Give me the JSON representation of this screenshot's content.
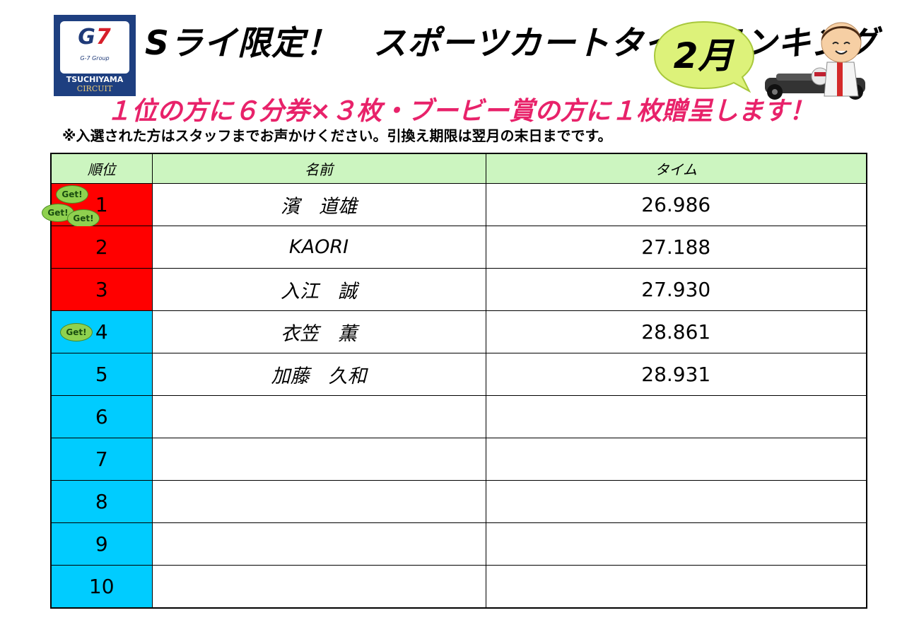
{
  "logo": {
    "mark_g": "G",
    "mark_7": "7",
    "group": "G-7 Group",
    "line1": "TSUCHIYAMA",
    "line2": "CIRCUIT"
  },
  "header": {
    "title": "Sライ限定！　スポーツカートタイムランキング",
    "month": "2月",
    "subtitle": "１位の方に６分券×３枚・ブービー賞の方に１枚贈呈します！",
    "note": "※入選された方はスタッフまでお声かけください。引換え期限は翌月の末日までです。"
  },
  "table": {
    "headers": {
      "rank": "順位",
      "name": "名前",
      "time": "タイム"
    },
    "rows": [
      {
        "rank": "1",
        "name": "濱　道雄",
        "time": "26.986"
      },
      {
        "rank": "2",
        "name": "KAORI",
        "time": "27.188"
      },
      {
        "rank": "3",
        "name": "入江　誠",
        "time": "27.930"
      },
      {
        "rank": "4",
        "name": "衣笠　薫",
        "time": "28.861"
      },
      {
        "rank": "5",
        "name": "加藤　久和",
        "time": "28.931"
      },
      {
        "rank": "6",
        "name": "",
        "time": ""
      },
      {
        "rank": "7",
        "name": "",
        "time": ""
      },
      {
        "rank": "8",
        "name": "",
        "time": ""
      },
      {
        "rank": "9",
        "name": "",
        "time": ""
      },
      {
        "rank": "10",
        "name": "",
        "time": ""
      }
    ]
  },
  "badges": {
    "get_label": "Get!"
  },
  "colors": {
    "top_rank_bg": "#ff0000",
    "other_rank_bg": "#00ccff",
    "header_bg": "#ccf5c0",
    "subtitle_color": "#e8226a",
    "bubble_color": "#ddf27a"
  }
}
